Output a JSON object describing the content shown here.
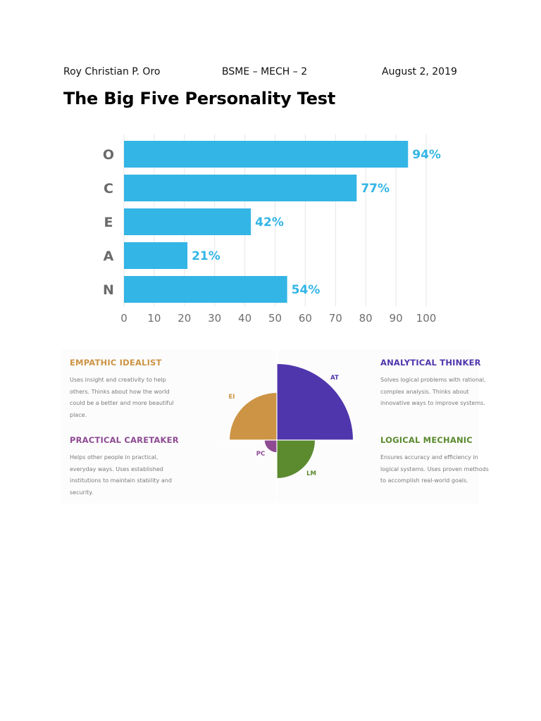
{
  "header": {
    "name": "Roy Christian P. Oro",
    "course": "BSME – MECH – 2",
    "date": "August 2, 2019"
  },
  "title": "The Big Five Personality Test",
  "chart_data": {
    "type": "bar",
    "orientation": "horizontal",
    "categories": [
      "O",
      "C",
      "E",
      "A",
      "N"
    ],
    "values": [
      94,
      77,
      42,
      21,
      54
    ],
    "value_labels": [
      "94%",
      "77%",
      "42%",
      "21%",
      "54%"
    ],
    "xlim": [
      0,
      100
    ],
    "x_ticks": [
      "0",
      "10",
      "20",
      "30",
      "40",
      "50",
      "60",
      "70",
      "80",
      "90",
      "100"
    ],
    "grid": true,
    "bar_color": "#33b5e5"
  },
  "types_chart": {
    "types": [
      {
        "key": "ei",
        "name": "EMPATHIC IDEALIST",
        "abbr": "EI",
        "color": "#cc9444",
        "desc": "Uses insight and creativity to help others. Thinks about how the world could be a better and more beautiful place.",
        "value": 0.62
      },
      {
        "key": "at",
        "name": "ANALYTICAL THINKER",
        "abbr": "AT",
        "color": "#5036ad",
        "desc": "Solves logical problems with rational, complex analysis. Thinks about innovative ways to improve systems.",
        "value": 1.0
      },
      {
        "key": "pc",
        "name": "PRACTICAL CARETAKER",
        "abbr": "PC",
        "color": "#8e4b93",
        "desc": "Helps other people in practical, everyday ways. Uses established institutions to maintain stability and security.",
        "value": 0.16
      },
      {
        "key": "lm",
        "name": "LOGICAL MECHANIC",
        "abbr": "LM",
        "color": "#5b8a2f",
        "desc": "Ensures accuracy and efficiency in logical systems. Uses proven methods to accomplish real-world goals.",
        "value": 0.5
      }
    ]
  }
}
